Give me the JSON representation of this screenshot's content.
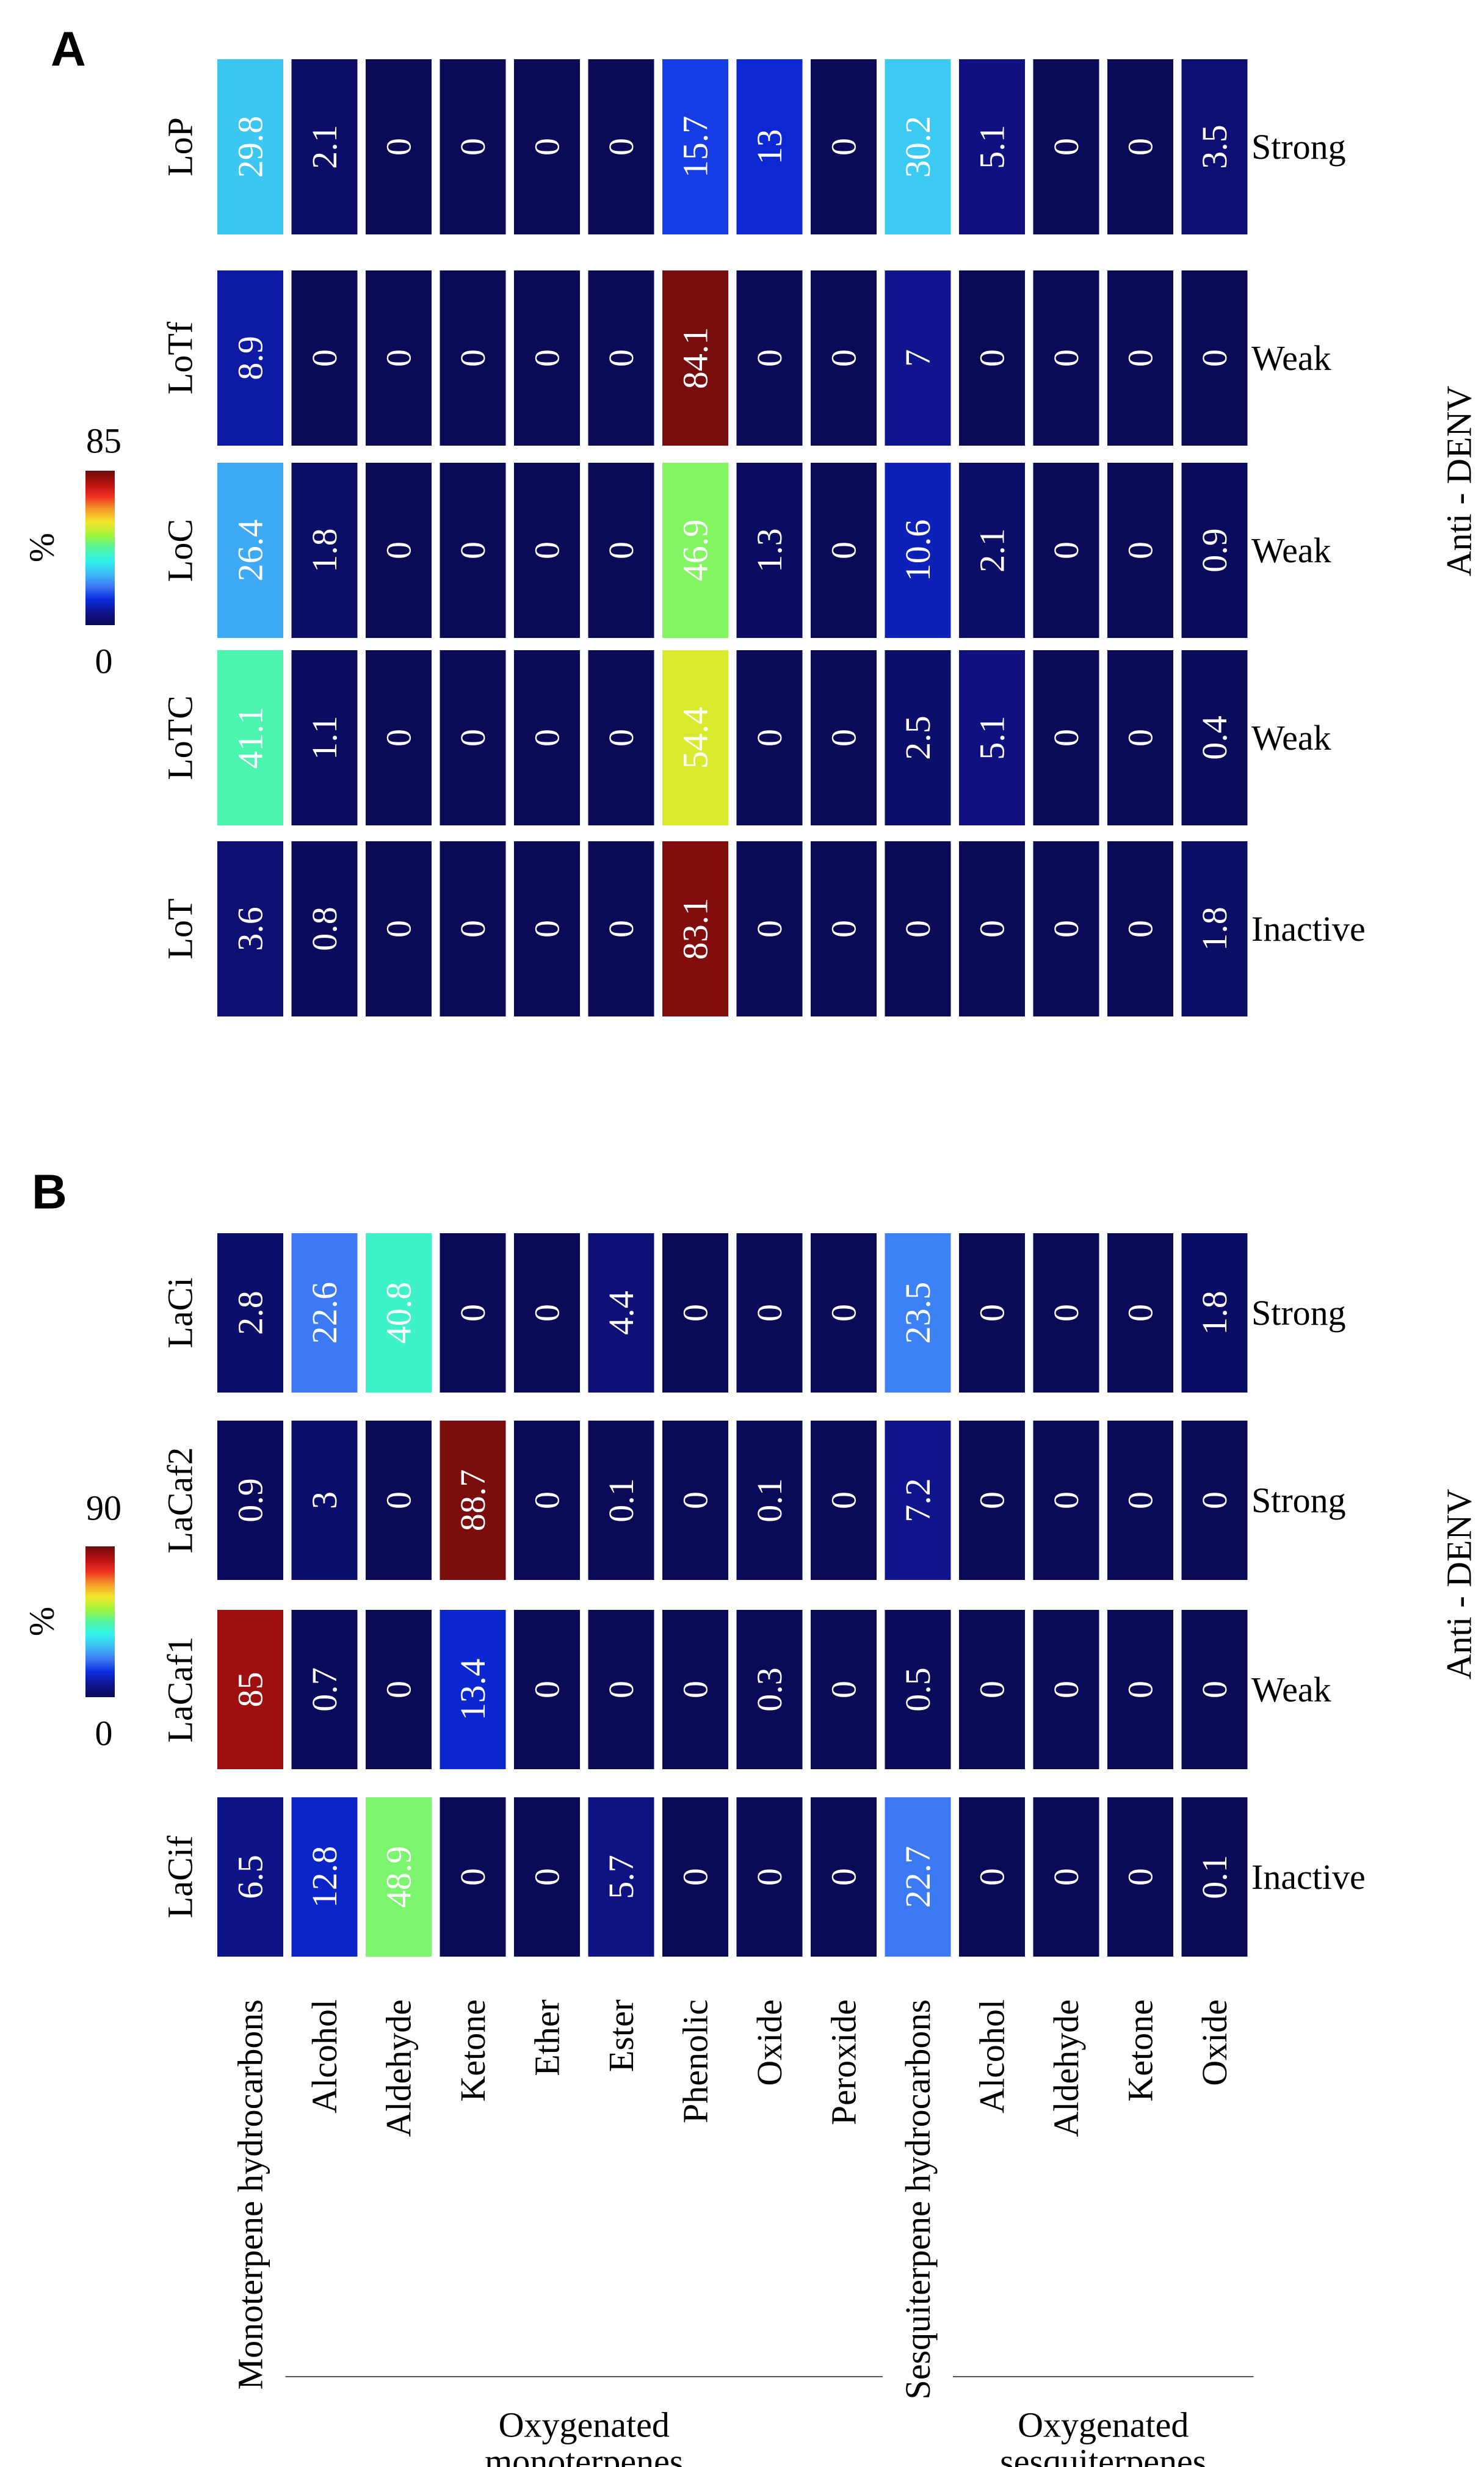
{
  "chart_data": [
    {
      "type": "heatmap",
      "panel_label": "A",
      "rows": [
        "LoP",
        "LoTf",
        "LoC",
        "LoTC",
        "LoT"
      ],
      "activity": [
        "Strong",
        "Weak",
        "Weak",
        "Weak",
        "Inactive"
      ],
      "values": [
        [
          "29.8",
          "2.1",
          "0",
          "0",
          "0",
          "0",
          "15.7",
          "13",
          "0",
          "30.2",
          "5.1",
          "0",
          "0",
          "3.5"
        ],
        [
          "8.9",
          "0",
          "0",
          "0",
          "0",
          "0",
          "84.1",
          "0",
          "0",
          "7",
          "0",
          "0",
          "0",
          "0"
        ],
        [
          "26.4",
          "1.8",
          "0",
          "0",
          "0",
          "0",
          "46.9",
          "1.3",
          "0",
          "10.6",
          "2.1",
          "0",
          "0",
          "0.9"
        ],
        [
          "41.1",
          "1.1",
          "0",
          "0",
          "0",
          "0",
          "54.4",
          "0",
          "0",
          "2.5",
          "5.1",
          "0",
          "0",
          "0.4"
        ],
        [
          "3.6",
          "0.8",
          "0",
          "0",
          "0",
          "0",
          "83.1",
          "0",
          "0",
          "0",
          "0",
          "0",
          "0",
          "1.8"
        ]
      ],
      "color_scale": {
        "label": "%",
        "min": 0,
        "max": 85,
        "min_label": "0",
        "max_label": "85"
      },
      "side_label": "Anti - DENV"
    },
    {
      "type": "heatmap",
      "panel_label": "B",
      "rows": [
        "LaCi",
        "LaCaf2",
        "LaCaf1",
        "LaCif"
      ],
      "activity": [
        "Strong",
        "Strong",
        "Weak",
        "Inactive"
      ],
      "values": [
        [
          "2.8",
          "22.6",
          "40.8",
          "0",
          "0",
          "4.4",
          "0",
          "0",
          "0",
          "23.5",
          "0",
          "0",
          "0",
          "1.8"
        ],
        [
          "0.9",
          "3",
          "0",
          "88.7",
          "0",
          "0.1",
          "0",
          "0.1",
          "0",
          "7.2",
          "0",
          "0",
          "0",
          "0"
        ],
        [
          "85",
          "0.7",
          "0",
          "13.4",
          "0",
          "0",
          "0",
          "0.3",
          "0",
          "0.5",
          "0",
          "0",
          "0",
          "0"
        ],
        [
          "6.5",
          "12.8",
          "48.9",
          "0",
          "0",
          "5.7",
          "0",
          "0",
          "0",
          "22.7",
          "0",
          "0",
          "0",
          "0.1"
        ]
      ],
      "color_scale": {
        "label": "%",
        "min": 0,
        "max": 90,
        "min_label": "0",
        "max_label": "90"
      },
      "side_label": "Anti - DENV"
    }
  ],
  "columns": [
    "Monoterpene hydrocarbons",
    "Alcohol",
    "Aldehyde",
    "Ketone",
    "Ether",
    "Ester",
    "Phenolic",
    "Oxide",
    "Peroxide",
    "Sesquiterpene hydrocarbons",
    "Alcohol",
    "Aldehyde",
    "Ketone",
    "Oxide"
  ],
  "groups": [
    {
      "line1": "Oxygenated",
      "line2": "monoterpenes",
      "from_col": 1,
      "to_col": 8
    },
    {
      "line1": "Oxygenated",
      "line2": "sesquiterpenes",
      "from_col": 10,
      "to_col": 13
    }
  ],
  "colors": {
    "colormap": [
      "#0a0a57",
      "#10148f",
      "#0a2ce0",
      "#3c78f5",
      "#3fbcf5",
      "#2ff2ea",
      "#52f5a0",
      "#a0f53a",
      "#f5e62a",
      "#f59a28",
      "#ef3022",
      "#b81010",
      "#6e0c0c"
    ],
    "text": "#ffffff",
    "axis": "#000000"
  }
}
